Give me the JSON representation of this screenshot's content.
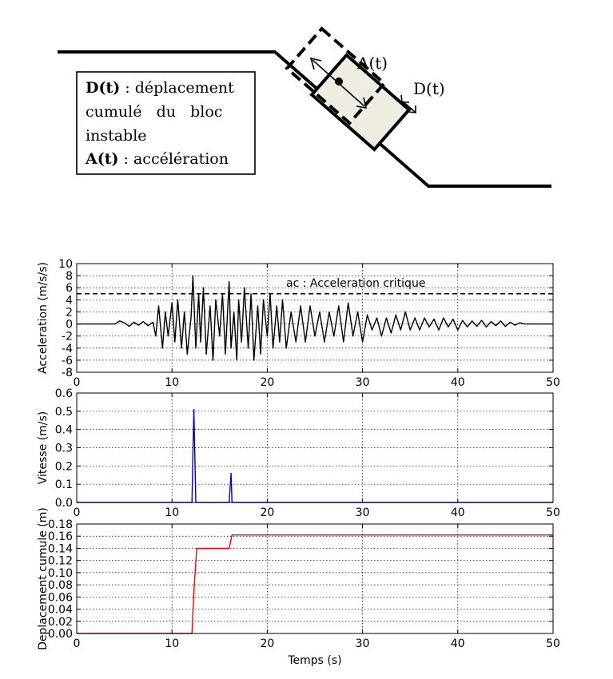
{
  "diagram": {
    "legend": {
      "line1_bold": "D(t)",
      "line1_rest": " : déplacement",
      "line2": "cumulé   du   bloc",
      "line3": "instable",
      "line4_bold": "A(t)",
      "line4_rest": " : accélération"
    },
    "labels": {
      "acceleration": "A(t)",
      "displacement": "D(t)"
    }
  },
  "chart_data": [
    {
      "type": "line",
      "ylabel": "Acceleration (m/s/s)",
      "xlim": [
        0,
        50
      ],
      "ylim": [
        -8,
        10
      ],
      "yticks": [
        -8,
        -6,
        -4,
        -2,
        0,
        2,
        4,
        6,
        8,
        10
      ],
      "xticks": [
        0,
        10,
        20,
        30,
        40,
        50
      ],
      "grid": true,
      "color": "#000000",
      "annotation": "ac : Acceleration critique",
      "threshold": 5,
      "series": [
        {
          "x": [
            0,
            4,
            4.5,
            5,
            5.5,
            6,
            6.5,
            7,
            7.5,
            8,
            8.3,
            8.6,
            9,
            9.3,
            9.6,
            10,
            10.3,
            10.6,
            11,
            11.3,
            11.6,
            12,
            12.2,
            12.5,
            12.8,
            13,
            13.3,
            13.6,
            14,
            14.3,
            14.6,
            15,
            15.3,
            15.6,
            16,
            16.2,
            16.5,
            16.8,
            17,
            17.3,
            17.6,
            18,
            18.3,
            18.6,
            19,
            19.3,
            19.6,
            20,
            20.3,
            20.6,
            21,
            21.3,
            21.6,
            22,
            22.5,
            23,
            23.5,
            24,
            24.5,
            25,
            25.5,
            26,
            26.5,
            27,
            27.5,
            28,
            28.5,
            29,
            29.5,
            30,
            30.5,
            31,
            31.5,
            32,
            32.5,
            33,
            33.5,
            34,
            34.5,
            35,
            35.5,
            36,
            36.5,
            37,
            37.5,
            38,
            38.5,
            39,
            39.5,
            40,
            40.5,
            41,
            41.5,
            42,
            42.5,
            43,
            43.5,
            44,
            44.5,
            45,
            45.5,
            46,
            46.5,
            47,
            48,
            50
          ],
          "y": [
            0,
            0,
            0.5,
            0.2,
            -0.4,
            0.3,
            -0.2,
            0.4,
            -0.3,
            0.3,
            -2,
            3,
            -4,
            2,
            -2,
            3.5,
            -3,
            4,
            -4,
            2,
            -5,
            1,
            8,
            -4,
            5,
            -3,
            6,
            -5,
            3,
            -6,
            4,
            -2,
            5,
            -5,
            7,
            -4,
            2,
            -6,
            4,
            -3,
            6,
            -4,
            5,
            -6,
            3,
            -5,
            4,
            -2,
            5,
            -4,
            3,
            -3,
            4,
            -4,
            2,
            -3,
            3,
            -3,
            3,
            -2,
            2,
            -3,
            2,
            -2,
            3,
            -3,
            3.5,
            -2,
            2,
            -3,
            1.5,
            -1,
            1,
            -2,
            1,
            -1.5,
            1.5,
            -1,
            2,
            -1,
            1,
            -1,
            1,
            -0.5,
            0.8,
            -1,
            1,
            -0.5,
            0.8,
            -1,
            0.6,
            -0.5,
            0.5,
            -0.4,
            0.6,
            -0.5,
            0.4,
            -0.3,
            0.5,
            -0.4,
            0.3,
            -0.2,
            0.2,
            0,
            0,
            0
          ]
        }
      ]
    },
    {
      "type": "line",
      "ylabel": "Vitesse (m/s)",
      "xlim": [
        0,
        50
      ],
      "ylim": [
        0,
        0.6
      ],
      "yticks": [
        0.0,
        0.1,
        0.2,
        0.3,
        0.4,
        0.5,
        0.6
      ],
      "xticks": [
        0,
        10,
        20,
        30,
        40,
        50
      ],
      "grid": true,
      "color": "#0000cc",
      "series": [
        {
          "x": [
            0,
            12.1,
            12.2,
            12.3,
            12.5,
            16,
            16.1,
            16.2,
            16.3,
            50
          ],
          "y": [
            0,
            0,
            0.27,
            0.51,
            0,
            0,
            0.08,
            0.16,
            0,
            0
          ]
        }
      ]
    },
    {
      "type": "line",
      "ylabel": "Deplacement cumule (m)",
      "xlabel": "Temps (s)",
      "xlim": [
        0,
        50
      ],
      "ylim": [
        0,
        0.18
      ],
      "yticks": [
        0.0,
        0.02,
        0.04,
        0.06,
        0.08,
        0.1,
        0.12,
        0.14,
        0.16,
        0.18
      ],
      "xticks": [
        0,
        10,
        20,
        30,
        40,
        50
      ],
      "grid": true,
      "color": "#ff0000",
      "series": [
        {
          "x": [
            0,
            12.1,
            12.3,
            12.6,
            16.0,
            16.3,
            50
          ],
          "y": [
            0,
            0,
            0.07,
            0.14,
            0.14,
            0.162,
            0.162
          ]
        }
      ]
    }
  ]
}
